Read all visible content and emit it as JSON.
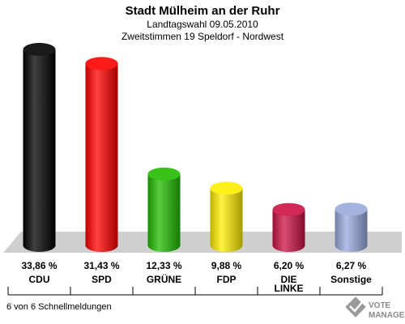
{
  "header": {
    "title": "Stadt Mülheim an der Ruhr",
    "subtitle1": "Landtagswahl 09.05.2010",
    "subtitle2": "Zweitstimmen 19 Speldorf - Nordwest"
  },
  "footer": {
    "status": "6 von 6 Schnellmeldungen"
  },
  "logo": {
    "line1": "VOTE",
    "line2": "MANAGER"
  },
  "chart_data": {
    "type": "bar",
    "title": "Stadt Mülheim an der Ruhr",
    "subtitle": "Landtagswahl 09.05.2010 · Zweitstimmen 19 Speldorf - Nordwest",
    "categories": [
      "CDU",
      "SPD",
      "GRÜNE",
      "FDP",
      "DIE LINKE",
      "Sonstige"
    ],
    "category_lines": [
      [
        "CDU"
      ],
      [
        "SPD"
      ],
      [
        "GRÜNE"
      ],
      [
        "FDP"
      ],
      [
        "DIE",
        "LINKE"
      ],
      [
        "Sonstige"
      ]
    ],
    "values": [
      33.86,
      31.43,
      12.33,
      9.88,
      6.2,
      6.27
    ],
    "value_labels": [
      "33,86 %",
      "31,43 %",
      "12,33 %",
      "9,88 %",
      "6,20 %",
      "6,27 %"
    ],
    "colors": [
      "#000000",
      "#ff0000",
      "#22bb00",
      "#ffee00",
      "#cc1144",
      "#99aadd"
    ],
    "xlabel": "",
    "ylabel": "",
    "grid": false,
    "legend": "none",
    "unit": "%"
  }
}
